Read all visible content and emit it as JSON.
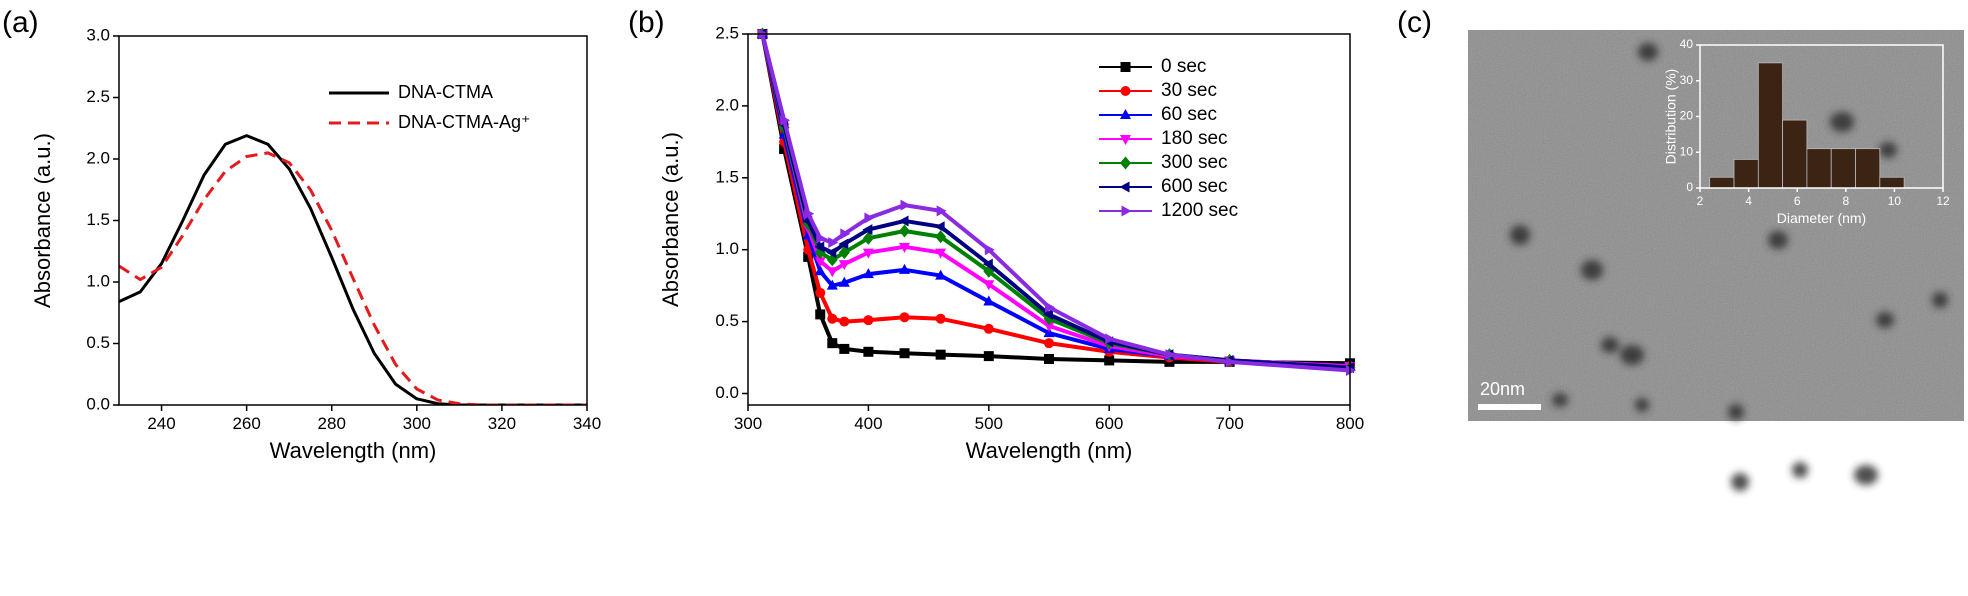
{
  "chart_data": [
    {
      "type": "line",
      "panel_label": "(a)",
      "xlabel": "Wavelength (nm)",
      "ylabel": "Absorbance (a.u.)",
      "xlim": [
        230,
        340
      ],
      "xticks": [
        240,
        260,
        280,
        300,
        320,
        340
      ],
      "ylim": [
        0,
        3
      ],
      "yticks": [
        {
          "value": 0,
          "label": "0.0"
        },
        0.5,
        {
          "value": 1,
          "label": "1.0"
        },
        1.5,
        {
          "value": 2,
          "label": "2.0"
        },
        2.5,
        {
          "value": 3,
          "label": "3.0"
        }
      ],
      "x": [
        230,
        235,
        240,
        245,
        250,
        255,
        260,
        265,
        270,
        275,
        280,
        285,
        290,
        295,
        300,
        305,
        310,
        315,
        320,
        325,
        330,
        335,
        340
      ],
      "series": [
        {
          "name": "DNA-CTMA",
          "color": "#000000",
          "style": "solid",
          "values": [
            0.84,
            0.92,
            1.15,
            1.5,
            1.87,
            2.12,
            2.19,
            2.12,
            1.92,
            1.6,
            1.2,
            0.78,
            0.42,
            0.17,
            0.05,
            0.01,
            0,
            0,
            0,
            0,
            0,
            0,
            0
          ]
        },
        {
          "name": "DNA-CTMA-Ag⁺",
          "color": "#e41a1c",
          "style": "dashed",
          "values": [
            1.13,
            1.02,
            1.12,
            1.38,
            1.67,
            1.9,
            2.02,
            2.05,
            1.97,
            1.75,
            1.42,
            1.03,
            0.65,
            0.33,
            0.13,
            0.04,
            0.01,
            0,
            0,
            0,
            0,
            0,
            0
          ]
        }
      ]
    },
    {
      "type": "line",
      "panel_label": "(b)",
      "xlabel": "Wavelength (nm)",
      "ylabel": "Absorbance (a.u.)",
      "xlim": [
        300,
        800
      ],
      "xticks": [
        300,
        400,
        500,
        600,
        700,
        800
      ],
      "ylim": [
        -0.08,
        2.5
      ],
      "yticks": [
        {
          "value": 0,
          "label": "0.0"
        },
        0.5,
        {
          "value": 1,
          "label": "1.0"
        },
        1.5,
        {
          "value": 2,
          "label": "2.0"
        },
        2.5
      ],
      "x": [
        312,
        330,
        350,
        360,
        370,
        380,
        400,
        430,
        460,
        500,
        550,
        600,
        650,
        700,
        800
      ],
      "series": [
        {
          "name": "0 sec",
          "color": "#000000",
          "marker": "square",
          "values": [
            2.5,
            1.7,
            0.95,
            0.55,
            0.35,
            0.31,
            0.29,
            0.28,
            0.27,
            0.26,
            0.24,
            0.23,
            0.22,
            0.22,
            0.21
          ]
        },
        {
          "name": "30 sec",
          "color": "#ff0000",
          "marker": "circle",
          "values": [
            2.5,
            1.75,
            1.0,
            0.7,
            0.52,
            0.5,
            0.51,
            0.53,
            0.52,
            0.45,
            0.35,
            0.29,
            0.25,
            0.22,
            0.19
          ]
        },
        {
          "name": "60 sec",
          "color": "#0000ff",
          "marker": "triangle-up",
          "values": [
            2.5,
            1.8,
            1.1,
            0.85,
            0.75,
            0.77,
            0.83,
            0.86,
            0.82,
            0.64,
            0.42,
            0.31,
            0.26,
            0.23,
            0.19
          ]
        },
        {
          "name": "180 sec",
          "color": "#ff00ff",
          "marker": "triangle-down",
          "values": [
            2.5,
            1.85,
            1.15,
            0.92,
            0.85,
            0.9,
            0.98,
            1.02,
            0.98,
            0.76,
            0.47,
            0.33,
            0.26,
            0.23,
            0.19
          ]
        },
        {
          "name": "300 sec",
          "color": "#008000",
          "marker": "diamond",
          "values": [
            2.5,
            1.85,
            1.18,
            0.98,
            0.93,
            0.98,
            1.08,
            1.13,
            1.09,
            0.85,
            0.52,
            0.35,
            0.27,
            0.23,
            0.18
          ]
        },
        {
          "name": "600 sec",
          "color": "#000080",
          "marker": "triangle-left",
          "values": [
            2.5,
            1.87,
            1.2,
            1.02,
            0.98,
            1.04,
            1.14,
            1.2,
            1.16,
            0.9,
            0.55,
            0.36,
            0.27,
            0.23,
            0.18
          ]
        },
        {
          "name": "1200 sec",
          "color": "#8a2be2",
          "marker": "triangle-right",
          "values": [
            2.5,
            1.9,
            1.25,
            1.08,
            1.05,
            1.11,
            1.22,
            1.31,
            1.27,
            1.0,
            0.6,
            0.38,
            0.27,
            0.22,
            0.16
          ]
        }
      ]
    },
    {
      "type": "histogram",
      "panel_label": "(c)",
      "scale_bar": "20nm",
      "xlabel": "Diameter (nm)",
      "ylabel": "Distribution (%)",
      "axis_color": "#ffffff",
      "color": "#3b2414",
      "xlim": [
        2,
        12
      ],
      "xticks": [
        2,
        4,
        6,
        8,
        10,
        12
      ],
      "ylim": [
        0,
        40
      ],
      "yticks": [
        0,
        10,
        20,
        30,
        40
      ],
      "bins": [
        2.4,
        3.4,
        4.4,
        5.4,
        6.4,
        7.4,
        8.4,
        9.4,
        10.4
      ],
      "values": [
        3,
        8,
        35,
        19,
        11,
        11,
        11,
        3
      ]
    }
  ]
}
